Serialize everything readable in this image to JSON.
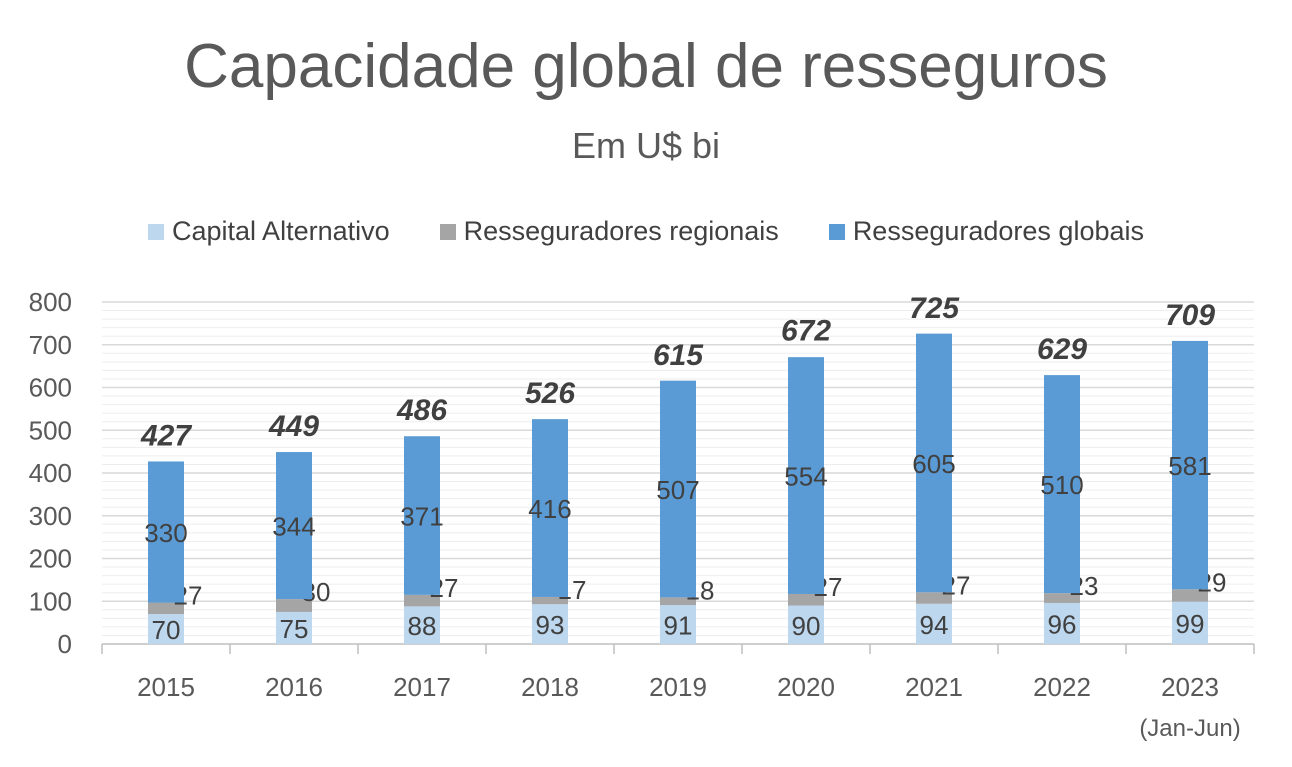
{
  "chart_data": {
    "type": "bar",
    "stacked": true,
    "title": "Capacidade global de resseguros",
    "subtitle": "Em U$ bi",
    "categories": [
      "2015",
      "2016",
      "2017",
      "2018",
      "2019",
      "2020",
      "2021",
      "2022",
      "2023"
    ],
    "category_sublabels": [
      "",
      "",
      "",
      "",
      "",
      "",
      "",
      "",
      "(Jan-Jun)"
    ],
    "series": [
      {
        "name": "Capital Alternativo",
        "color": "#bdd7ee",
        "values": [
          70,
          75,
          88,
          93,
          91,
          90,
          94,
          96,
          99
        ]
      },
      {
        "name": "Resseguradores regionais",
        "color": "#a5a5a5",
        "values": [
          27,
          30,
          27,
          17,
          18,
          27,
          27,
          23,
          29
        ]
      },
      {
        "name": "Resseguradores globais",
        "color": "#5b9bd5",
        "values": [
          330,
          344,
          371,
          416,
          507,
          554,
          605,
          510,
          581
        ]
      }
    ],
    "totals": [
      427,
      449,
      486,
      526,
      615,
      672,
      725,
      629,
      709
    ],
    "ylim": [
      0,
      800
    ],
    "yticks": [
      0,
      100,
      200,
      300,
      400,
      500,
      600,
      700,
      800
    ],
    "grid": true,
    "legend_position": "top"
  }
}
